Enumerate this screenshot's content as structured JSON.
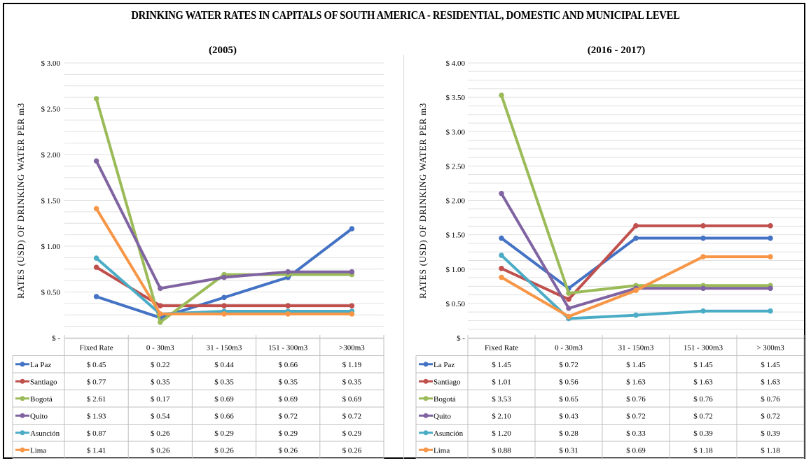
{
  "title": "DRINKING WATER RATES IN CAPITALS OF SOUTH AMERICA - RESIDENTIAL, DOMESTIC AND MUNICIPAL LEVEL",
  "chart_data": [
    {
      "type": "line",
      "title": "(2005)",
      "ylabel": "RATES (USD) OF DRINKING WATER PER m3",
      "categories": [
        "Fixed Rate",
        "0 - 30m3",
        "31 - 150m3",
        "151 - 300m3",
        ">300m3"
      ],
      "ylim": [
        0,
        3.0
      ],
      "yticks": [
        0,
        0.5,
        1.0,
        1.5,
        2.0,
        2.5,
        3.0
      ],
      "ytick_labels": [
        "$ -",
        "$ 0.50",
        "$ 1.00",
        "$ 1.50",
        "$ 2.00",
        "$ 2.50",
        "$ 3.00"
      ],
      "grid": true,
      "legend": "data table below the plot",
      "series": [
        {
          "name": "La Paz",
          "color": "#4472c4",
          "values": [
            0.45,
            0.22,
            0.44,
            0.66,
            1.19
          ],
          "labels": [
            "$ 0.45",
            "$ 0.22",
            "$ 0.44",
            "$ 0.66",
            "$ 1.19"
          ]
        },
        {
          "name": "Santiago",
          "color": "#c0504d",
          "values": [
            0.77,
            0.35,
            0.35,
            0.35,
            0.35
          ],
          "labels": [
            "$ 0.77",
            "$ 0.35",
            "$ 0.35",
            "$ 0.35",
            "$ 0.35"
          ]
        },
        {
          "name": "Bogotá",
          "color": "#9bbb59",
          "values": [
            2.61,
            0.17,
            0.69,
            0.69,
            0.69
          ],
          "labels": [
            "$ 2.61",
            "$ 0.17",
            "$ 0.69",
            "$ 0.69",
            "$ 0.69"
          ]
        },
        {
          "name": "Quito",
          "color": "#8064a2",
          "values": [
            1.93,
            0.54,
            0.66,
            0.72,
            0.72
          ],
          "labels": [
            "$ 1.93",
            "$ 0.54",
            "$ 0.66",
            "$ 0.72",
            "$ 0.72"
          ]
        },
        {
          "name": "Asunción",
          "color": "#4bacc6",
          "values": [
            0.87,
            0.26,
            0.29,
            0.29,
            0.29
          ],
          "labels": [
            "$ 0.87",
            "$ 0.26",
            "$ 0.29",
            "$ 0.29",
            "$ 0.29"
          ]
        },
        {
          "name": "Lima",
          "color": "#f79646",
          "values": [
            1.41,
            0.26,
            0.26,
            0.26,
            0.26
          ],
          "labels": [
            "$ 1.41",
            "$ 0.26",
            "$ 0.26",
            "$ 0.26",
            "$ 0.26"
          ]
        }
      ]
    },
    {
      "type": "line",
      "title": "(2016 - 2017)",
      "ylabel": "RATES (USD) OF DRINKING WATER PER m3",
      "categories": [
        "Fixed Rate",
        "0 - 30m3",
        "31 - 150m3",
        "151 - 300m3",
        "> 300m3"
      ],
      "ylim": [
        0,
        4.0
      ],
      "yticks": [
        0,
        0.5,
        1.0,
        1.5,
        2.0,
        2.5,
        3.0,
        3.5,
        4.0
      ],
      "ytick_labels": [
        "$ -",
        "$ 0.50",
        "$ 1.00",
        "$ 1.50",
        "$ 2.00",
        "$ 2.50",
        "$ 3.00",
        "$ 3.50",
        "$ 4.00"
      ],
      "grid": true,
      "legend": "data table below the plot",
      "series": [
        {
          "name": "La Paz",
          "color": "#4472c4",
          "values": [
            1.45,
            0.72,
            1.45,
            1.45,
            1.45
          ],
          "labels": [
            "$ 1.45",
            "$ 0.72",
            "$ 1.45",
            "$ 1.45",
            "$ 1.45"
          ]
        },
        {
          "name": "Santiago",
          "color": "#c0504d",
          "values": [
            1.01,
            0.56,
            1.63,
            1.63,
            1.63
          ],
          "labels": [
            "$ 1.01",
            "$ 0.56",
            "$ 1.63",
            "$ 1.63",
            "$ 1.63"
          ]
        },
        {
          "name": "Bogotá",
          "color": "#9bbb59",
          "values": [
            3.53,
            0.65,
            0.76,
            0.76,
            0.76
          ],
          "labels": [
            "$ 3.53",
            "$ 0.65",
            "$ 0.76",
            "$ 0.76",
            "$ 0.76"
          ]
        },
        {
          "name": "Quito",
          "color": "#8064a2",
          "values": [
            2.1,
            0.43,
            0.72,
            0.72,
            0.72
          ],
          "labels": [
            "$ 2.10",
            "$ 0.43",
            "$ 0.72",
            "$ 0.72",
            "$ 0.72"
          ]
        },
        {
          "name": "Asunción",
          "color": "#4bacc6",
          "values": [
            1.2,
            0.28,
            0.33,
            0.39,
            0.39
          ],
          "labels": [
            "$ 1.20",
            "$ 0.28",
            "$ 0.33",
            "$ 0.39",
            "$ 0.39"
          ]
        },
        {
          "name": "Lima",
          "color": "#f79646",
          "values": [
            0.88,
            0.31,
            0.69,
            1.18,
            1.18
          ],
          "labels": [
            "$ 0.88",
            "$ 0.31",
            "$ 0.69",
            "$ 1.18",
            "$ 1.18"
          ]
        }
      ]
    }
  ]
}
